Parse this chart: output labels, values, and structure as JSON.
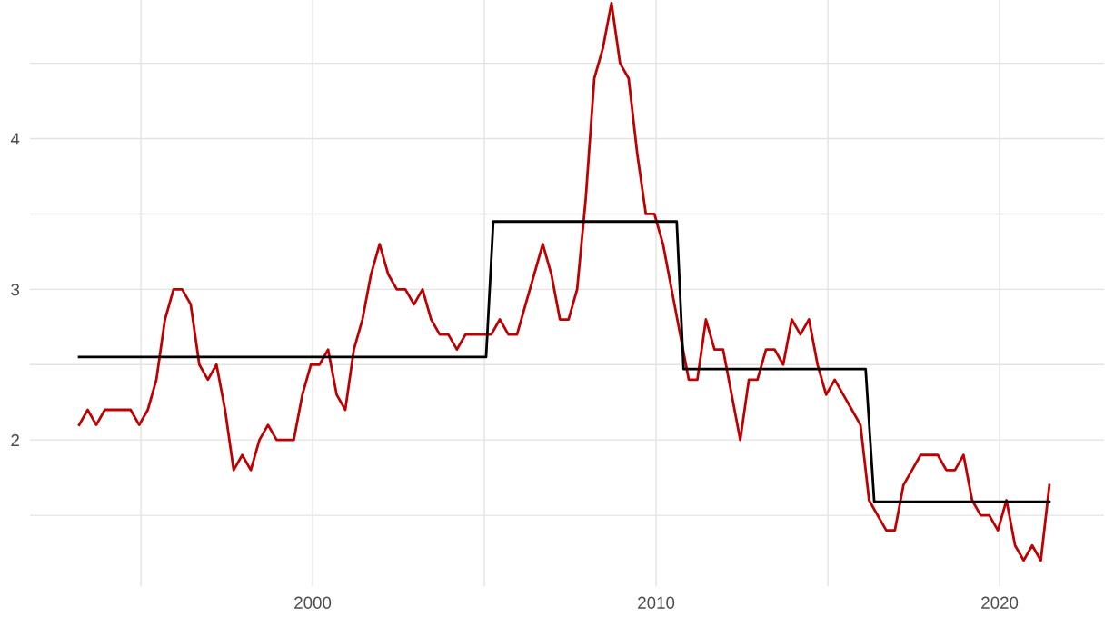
{
  "chart_data": {
    "type": "line",
    "xlim": [
      1991.77,
      2023.04
    ],
    "ylim": [
      1.03,
      4.92
    ],
    "xticks": [
      {
        "value": 1995,
        "label": null
      },
      2000,
      {
        "value": 2005,
        "label": null
      },
      2010,
      {
        "value": 2015,
        "label": null
      },
      2020
    ],
    "yticks": [
      {
        "value": 1.5,
        "label": null
      },
      2,
      {
        "value": 2.5,
        "label": null
      },
      3,
      {
        "value": 3.5,
        "label": null
      },
      4,
      {
        "value": 4.5,
        "label": null
      }
    ],
    "grid": true,
    "marker": "none",
    "line_style": "solid",
    "series": [
      {
        "color": "#c00000",
        "x": [
          1993.2,
          1993.45,
          1993.7,
          1993.95,
          1994.2,
          1994.45,
          1994.7,
          1994.95,
          1995.2,
          1995.45,
          1995.7,
          1995.95,
          1996.2,
          1996.45,
          1996.7,
          1996.95,
          1997.2,
          1997.45,
          1997.7,
          1997.95,
          1998.2,
          1998.45,
          1998.7,
          1998.95,
          1999.2,
          1999.45,
          1999.7,
          1999.95,
          2000.2,
          2000.45,
          2000.7,
          2000.95,
          2001.2,
          2001.45,
          2001.7,
          2001.95,
          2002.2,
          2002.45,
          2002.7,
          2002.95,
          2003.2,
          2003.45,
          2003.7,
          2003.95,
          2004.2,
          2004.45,
          2004.7,
          2004.95,
          2005.2,
          2005.45,
          2005.7,
          2005.95,
          2006.2,
          2006.45,
          2006.7,
          2006.95,
          2007.2,
          2007.45,
          2007.7,
          2007.95,
          2008.2,
          2008.45,
          2008.7,
          2008.95,
          2009.2,
          2009.45,
          2009.7,
          2009.95,
          2010.2,
          2010.45,
          2010.7,
          2010.95,
          2011.2,
          2011.45,
          2011.7,
          2011.95,
          2012.2,
          2012.45,
          2012.7,
          2012.95,
          2013.2,
          2013.45,
          2013.7,
          2013.95,
          2014.2,
          2014.45,
          2014.7,
          2014.95,
          2015.2,
          2015.45,
          2015.7,
          2015.95,
          2016.2,
          2016.45,
          2016.7,
          2016.95,
          2017.2,
          2017.45,
          2017.7,
          2017.95,
          2018.2,
          2018.45,
          2018.7,
          2018.95,
          2019.2,
          2019.45,
          2019.7,
          2019.95,
          2020.2,
          2020.45,
          2020.7,
          2020.95,
          2021.2,
          2021.45
        ],
        "values": [
          2.1,
          2.2,
          2.1,
          2.2,
          2.2,
          2.2,
          2.2,
          2.1,
          2.2,
          2.4,
          2.8,
          3.0,
          3.0,
          2.9,
          2.5,
          2.4,
          2.5,
          2.2,
          1.8,
          1.9,
          1.8,
          2.0,
          2.1,
          2.0,
          2.0,
          2.0,
          2.3,
          2.5,
          2.5,
          2.6,
          2.3,
          2.2,
          2.6,
          2.8,
          3.1,
          3.3,
          3.1,
          3.0,
          3.0,
          2.9,
          3.0,
          2.8,
          2.7,
          2.7,
          2.6,
          2.7,
          2.7,
          2.7,
          2.7,
          2.8,
          2.7,
          2.7,
          2.9,
          3.1,
          3.3,
          3.1,
          2.8,
          2.8,
          3.0,
          3.6,
          4.4,
          4.6,
          4.9,
          4.5,
          4.4,
          3.9,
          3.5,
          3.5,
          3.3,
          3.0,
          2.7,
          2.4,
          2.4,
          2.8,
          2.6,
          2.6,
          2.3,
          2.0,
          2.4,
          2.4,
          2.6,
          2.6,
          2.5,
          2.8,
          2.7,
          2.8,
          2.5,
          2.3,
          2.4,
          2.3,
          2.2,
          2.1,
          1.6,
          1.5,
          1.4,
          1.4,
          1.7,
          1.8,
          1.9,
          1.9,
          1.9,
          1.8,
          1.8,
          1.9,
          1.6,
          1.5,
          1.5,
          1.4,
          1.6,
          1.3,
          1.2,
          1.3,
          1.2,
          1.7
        ]
      },
      {
        "color": "#000000",
        "x": [
          1993.2,
          2005.05,
          2005.26,
          2010.6,
          2010.8,
          2016.1,
          2016.35,
          2021.45
        ],
        "values": [
          2.55,
          2.55,
          3.45,
          3.45,
          2.47,
          2.47,
          1.59,
          1.59
        ]
      }
    ]
  }
}
